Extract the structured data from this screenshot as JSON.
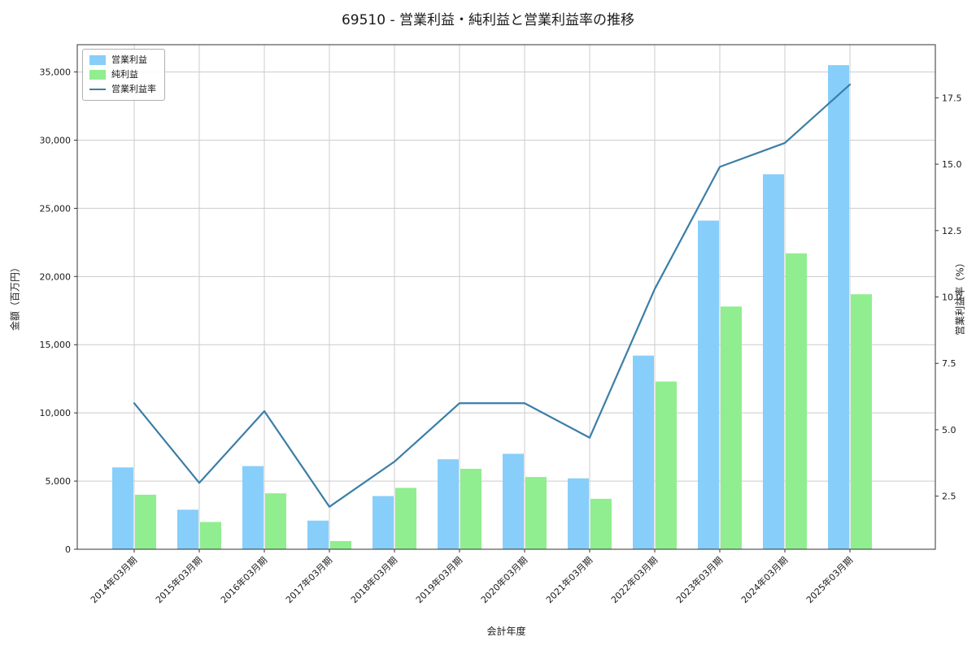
{
  "chart_data": {
    "type": "bar",
    "title": "69510 - 営業利益・純利益と営業利益率の推移",
    "xlabel": "会計年度",
    "ylabel_left": "金額（百万円）",
    "ylabel_right": "営業利益率（%）",
    "categories": [
      "2014年03月期",
      "2015年03月期",
      "2016年03月期",
      "2017年03月期",
      "2018年03月期",
      "2019年03月期",
      "2020年03月期",
      "2021年03月期",
      "2022年03月期",
      "2023年03月期",
      "2024年03月期",
      "2025年03月期"
    ],
    "series": [
      {
        "name": "営業利益",
        "type": "bar",
        "axis": "left",
        "color": "#87CEFA",
        "values": [
          6000,
          2900,
          6100,
          2100,
          3900,
          6600,
          7000,
          5200,
          14200,
          24100,
          27500,
          35500
        ]
      },
      {
        "name": "純利益",
        "type": "bar",
        "axis": "left",
        "color": "#90EE90",
        "values": [
          4000,
          2000,
          4100,
          600,
          4500,
          5900,
          5300,
          3700,
          12300,
          17800,
          21700,
          18700
        ]
      },
      {
        "name": "営業利益率",
        "type": "line",
        "axis": "right",
        "color": "#3B7EA8",
        "values": [
          6.0,
          3.0,
          5.7,
          2.1,
          3.8,
          6.0,
          6.0,
          4.7,
          10.3,
          14.9,
          15.8,
          18.0
        ]
      }
    ],
    "ylim_left": [
      0,
      37000
    ],
    "yticks_left": [
      0,
      5000,
      10000,
      15000,
      20000,
      25000,
      30000,
      35000
    ],
    "ylim_right": [
      0.5,
      19.5
    ],
    "yticks_right": [
      2.5,
      5.0,
      7.5,
      10.0,
      12.5,
      15.0,
      17.5
    ],
    "grid": true,
    "legend_position": "upper left"
  }
}
